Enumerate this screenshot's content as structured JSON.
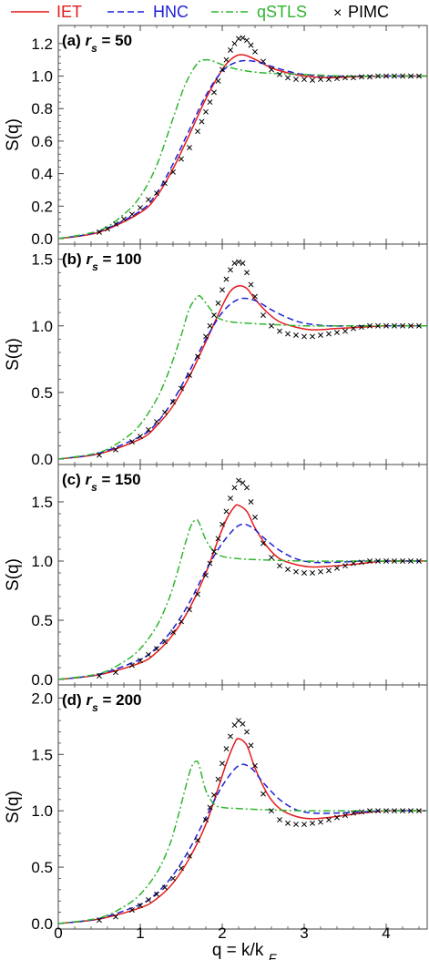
{
  "legend": [
    {
      "name": "IET",
      "color": "#e41a1c",
      "dash": "solid"
    },
    {
      "name": "HNC",
      "color": "#1f1fd6",
      "dash": "dashed"
    },
    {
      "name": "qSTLS",
      "color": "#2fb52f",
      "dash": "dashdot"
    },
    {
      "name": "PIMC",
      "color": "#000000",
      "marker": "×"
    }
  ],
  "chart_data": {
    "type": "line",
    "xlabel": "q = k/k_F",
    "ylabel": "S(q)",
    "xlim": [
      0,
      4.5
    ],
    "x_ticks": [
      "0",
      "1",
      "2",
      "3",
      "4"
    ],
    "panels": [
      {
        "label_prefix": "(a) ",
        "label_var": "r",
        "label_sub": "s",
        "label_suffix": " = 50",
        "ylim": [
          0,
          1.3
        ],
        "y_ticks": [
          0,
          0.2,
          0.4,
          0.6,
          0.8,
          1.0,
          1.2
        ],
        "y_tick_labels": [
          "0.0",
          "0.2",
          "0.4",
          "0.6",
          "0.8",
          "1.0",
          "1.2"
        ],
        "series": [
          {
            "name": "IET",
            "x": [
              0,
              0.5,
              1.0,
              1.2,
              1.4,
              1.6,
              1.8,
              2.0,
              2.1,
              2.2,
              2.3,
              2.45,
              2.6,
              2.8,
              3.0,
              3.3,
              3.6,
              4.0,
              4.5
            ],
            "y": [
              0,
              0.04,
              0.16,
              0.26,
              0.43,
              0.64,
              0.86,
              1.04,
              1.1,
              1.13,
              1.125,
              1.09,
              1.05,
              1.02,
              1.0,
              0.99,
              0.995,
              1.0,
              1.0
            ]
          },
          {
            "name": "HNC",
            "x": [
              0,
              0.5,
              1.0,
              1.2,
              1.4,
              1.6,
              1.8,
              2.0,
              2.2,
              2.4,
              2.6,
              2.8,
              3.0,
              3.3,
              3.6,
              4.0,
              4.5
            ],
            "y": [
              0,
              0.045,
              0.17,
              0.28,
              0.46,
              0.67,
              0.88,
              1.03,
              1.09,
              1.09,
              1.06,
              1.03,
              1.01,
              1.0,
              1.0,
              1.0,
              1.0
            ]
          },
          {
            "name": "qSTLS",
            "x": [
              0,
              0.5,
              0.8,
              1.0,
              1.2,
              1.4,
              1.55,
              1.7,
              1.8,
              1.9,
              2.0,
              2.2,
              2.5,
              3.0,
              3.5,
              4.0,
              4.5
            ],
            "y": [
              0,
              0.05,
              0.15,
              0.26,
              0.45,
              0.74,
              0.95,
              1.08,
              1.1,
              1.09,
              1.07,
              1.04,
              1.02,
              1.01,
              1.0,
              1.0,
              1.0
            ]
          },
          {
            "name": "PIMC",
            "x": [
              0.5,
              0.6,
              0.7,
              0.8,
              0.9,
              1.0,
              1.1,
              1.2,
              1.3,
              1.4,
              1.5,
              1.6,
              1.7,
              1.75,
              1.8,
              1.85,
              1.9,
              1.95,
              2.0,
              2.05,
              2.1,
              2.15,
              2.2,
              2.25,
              2.3,
              2.35,
              2.4,
              2.5,
              2.6,
              2.7,
              2.8,
              2.9,
              3.0,
              3.1,
              3.2,
              3.3,
              3.4,
              3.5,
              3.6,
              3.7,
              3.8,
              3.9,
              4.0,
              4.1,
              4.2,
              4.3,
              4.4
            ],
            "y": [
              0.04,
              0.06,
              0.09,
              0.12,
              0.15,
              0.19,
              0.24,
              0.28,
              0.34,
              0.41,
              0.49,
              0.56,
              0.66,
              0.72,
              0.78,
              0.84,
              0.9,
              0.97,
              1.04,
              1.1,
              1.16,
              1.2,
              1.23,
              1.235,
              1.22,
              1.19,
              1.15,
              1.09,
              1.04,
              1.01,
              0.99,
              0.98,
              0.98,
              0.975,
              0.98,
              0.98,
              0.985,
              0.99,
              0.99,
              0.995,
              0.995,
              1.0,
              1.0,
              1.0,
              1.0,
              1.0,
              1.0
            ]
          }
        ]
      },
      {
        "label_prefix": "(b) ",
        "label_var": "r",
        "label_sub": "s",
        "label_suffix": " = 100",
        "ylim": [
          0,
          1.6
        ],
        "y_ticks": [
          0,
          0.5,
          1.0,
          1.5
        ],
        "y_tick_labels": [
          "0.0",
          "0.5",
          "1.0",
          "1.5"
        ],
        "series": [
          {
            "name": "IET",
            "x": [
              0,
              0.5,
              1.0,
              1.2,
              1.4,
              1.6,
              1.8,
              2.0,
              2.1,
              2.2,
              2.3,
              2.4,
              2.55,
              2.7,
              2.9,
              3.1,
              3.4,
              3.7,
              4.0,
              4.5
            ],
            "y": [
              0,
              0.04,
              0.15,
              0.25,
              0.4,
              0.62,
              0.88,
              1.15,
              1.26,
              1.3,
              1.28,
              1.2,
              1.1,
              1.03,
              0.99,
              0.97,
              0.98,
              0.99,
              1.0,
              1.0
            ]
          },
          {
            "name": "HNC",
            "x": [
              0,
              0.5,
              1.0,
              1.2,
              1.4,
              1.6,
              1.8,
              2.0,
              2.2,
              2.4,
              2.6,
              2.8,
              3.0,
              3.3,
              3.6,
              4.0,
              4.5
            ],
            "y": [
              0,
              0.045,
              0.17,
              0.27,
              0.44,
              0.66,
              0.9,
              1.1,
              1.2,
              1.19,
              1.12,
              1.06,
              1.02,
              1.0,
              1.0,
              1.0,
              1.0
            ]
          },
          {
            "name": "qSTLS",
            "x": [
              0,
              0.5,
              0.8,
              1.0,
              1.2,
              1.35,
              1.5,
              1.6,
              1.7,
              1.75,
              1.85,
              1.95,
              2.1,
              2.3,
              2.6,
              3.0,
              3.5,
              4.0,
              4.5
            ],
            "y": [
              0,
              0.05,
              0.15,
              0.26,
              0.45,
              0.66,
              0.93,
              1.13,
              1.22,
              1.21,
              1.13,
              1.06,
              1.03,
              1.02,
              1.01,
              1.0,
              1.0,
              1.0,
              1.0
            ]
          },
          {
            "name": "PIMC",
            "x": [
              0.5,
              0.7,
              0.9,
              1.0,
              1.1,
              1.2,
              1.3,
              1.4,
              1.5,
              1.6,
              1.7,
              1.8,
              1.85,
              1.9,
              1.95,
              2.0,
              2.05,
              2.1,
              2.15,
              2.2,
              2.25,
              2.3,
              2.35,
              2.4,
              2.5,
              2.6,
              2.7,
              2.8,
              2.9,
              3.0,
              3.1,
              3.2,
              3.3,
              3.4,
              3.5,
              3.6,
              3.7,
              3.8,
              3.9,
              4.0,
              4.1,
              4.2,
              4.3,
              4.4
            ],
            "y": [
              0.03,
              0.07,
              0.13,
              0.17,
              0.22,
              0.28,
              0.35,
              0.43,
              0.53,
              0.63,
              0.77,
              0.92,
              1.0,
              1.08,
              1.17,
              1.27,
              1.35,
              1.42,
              1.47,
              1.48,
              1.47,
              1.4,
              1.31,
              1.22,
              1.08,
              1.0,
              0.96,
              0.94,
              0.93,
              0.92,
              0.92,
              0.93,
              0.94,
              0.95,
              0.96,
              0.98,
              0.99,
              1.0,
              1.0,
              1.0,
              1.0,
              1.0,
              1.0,
              1.0
            ]
          }
        ]
      },
      {
        "label_prefix": "(c) ",
        "label_var": "r",
        "label_sub": "s",
        "label_suffix": " = 150",
        "ylim": [
          0,
          1.8
        ],
        "y_ticks": [
          0,
          0.5,
          1.0,
          1.5
        ],
        "y_tick_labels": [
          "0.0",
          "0.5",
          "1.0",
          "1.5"
        ],
        "series": [
          {
            "name": "IET",
            "x": [
              0,
              0.5,
              1.0,
              1.2,
              1.4,
              1.6,
              1.8,
              1.95,
              2.05,
              2.15,
              2.2,
              2.3,
              2.4,
              2.55,
              2.7,
              2.9,
              3.1,
              3.4,
              3.7,
              4.0,
              4.5
            ],
            "y": [
              0,
              0.04,
              0.14,
              0.23,
              0.38,
              0.6,
              0.9,
              1.18,
              1.35,
              1.46,
              1.47,
              1.42,
              1.28,
              1.12,
              1.02,
              0.97,
              0.95,
              0.96,
              0.98,
              1.0,
              1.0
            ]
          },
          {
            "name": "HNC",
            "x": [
              0,
              0.5,
              1.0,
              1.2,
              1.4,
              1.6,
              1.8,
              2.0,
              2.2,
              2.35,
              2.5,
              2.7,
              2.9,
              3.1,
              3.4,
              3.7,
              4.0,
              4.5
            ],
            "y": [
              0,
              0.045,
              0.17,
              0.27,
              0.43,
              0.65,
              0.92,
              1.15,
              1.3,
              1.29,
              1.2,
              1.09,
              1.02,
              0.99,
              0.99,
              1.0,
              1.0,
              1.0
            ]
          },
          {
            "name": "qSTLS",
            "x": [
              0,
              0.5,
              0.8,
              1.0,
              1.2,
              1.35,
              1.45,
              1.55,
              1.62,
              1.68,
              1.72,
              1.8,
              1.9,
              2.0,
              2.2,
              2.5,
              3.0,
              3.5,
              4.0,
              4.5
            ],
            "y": [
              0,
              0.05,
              0.15,
              0.26,
              0.45,
              0.68,
              0.9,
              1.15,
              1.3,
              1.35,
              1.32,
              1.18,
              1.08,
              1.04,
              1.02,
              1.01,
              1.0,
              1.0,
              1.0,
              1.0
            ]
          },
          {
            "name": "PIMC",
            "x": [
              0.5,
              0.7,
              0.9,
              1.0,
              1.1,
              1.2,
              1.3,
              1.4,
              1.5,
              1.6,
              1.7,
              1.8,
              1.85,
              1.9,
              1.95,
              2.0,
              2.05,
              2.1,
              2.15,
              2.2,
              2.25,
              2.3,
              2.35,
              2.4,
              2.5,
              2.6,
              2.7,
              2.8,
              2.9,
              3.0,
              3.1,
              3.2,
              3.3,
              3.4,
              3.5,
              3.6,
              3.7,
              3.8,
              3.9,
              4.0,
              4.1,
              4.2,
              4.3,
              4.4
            ],
            "y": [
              0.03,
              0.06,
              0.12,
              0.16,
              0.21,
              0.26,
              0.32,
              0.4,
              0.49,
              0.59,
              0.72,
              0.88,
              0.98,
              1.08,
              1.19,
              1.31,
              1.42,
              1.53,
              1.62,
              1.68,
              1.66,
              1.62,
              1.5,
              1.37,
              1.15,
              1.03,
              0.96,
              0.93,
              0.91,
              0.9,
              0.9,
              0.91,
              0.92,
              0.94,
              0.96,
              0.98,
              0.99,
              1.0,
              1.0,
              1.0,
              1.0,
              1.0,
              1.0,
              1.0
            ]
          }
        ]
      },
      {
        "label_prefix": "(d) ",
        "label_var": "r",
        "label_sub": "s",
        "label_suffix": " = 200",
        "ylim": [
          0,
          2.1
        ],
        "y_ticks": [
          0,
          0.5,
          1.0,
          1.5,
          2.0
        ],
        "y_tick_labels": [
          "0.0",
          "0.5",
          "1.0",
          "1.5",
          "2.0"
        ],
        "series": [
          {
            "name": "IET",
            "x": [
              0,
              0.5,
              1.0,
              1.2,
              1.4,
              1.6,
              1.8,
              1.95,
              2.05,
              2.15,
              2.2,
              2.3,
              2.4,
              2.55,
              2.7,
              2.9,
              3.1,
              3.4,
              3.7,
              4.0,
              4.5
            ],
            "y": [
              0,
              0.04,
              0.14,
              0.22,
              0.36,
              0.58,
              0.88,
              1.2,
              1.42,
              1.6,
              1.64,
              1.58,
              1.38,
              1.15,
              1.02,
              0.95,
              0.93,
              0.95,
              0.98,
              1.0,
              1.0
            ]
          },
          {
            "name": "HNC",
            "x": [
              0,
              0.5,
              1.0,
              1.2,
              1.4,
              1.6,
              1.8,
              2.0,
              2.2,
              2.35,
              2.5,
              2.7,
              2.9,
              3.1,
              3.4,
              3.7,
              4.0,
              4.5
            ],
            "y": [
              0,
              0.045,
              0.17,
              0.27,
              0.43,
              0.66,
              0.94,
              1.22,
              1.4,
              1.38,
              1.25,
              1.1,
              1.01,
              0.98,
              0.98,
              0.99,
              1.0,
              1.0
            ]
          },
          {
            "name": "qSTLS",
            "x": [
              0,
              0.5,
              0.8,
              1.0,
              1.2,
              1.35,
              1.45,
              1.55,
              1.62,
              1.68,
              1.72,
              1.8,
              1.9,
              2.0,
              2.2,
              2.5,
              3.0,
              3.5,
              4.0,
              4.5
            ],
            "y": [
              0,
              0.05,
              0.15,
              0.26,
              0.45,
              0.68,
              0.92,
              1.2,
              1.38,
              1.44,
              1.4,
              1.18,
              1.06,
              1.03,
              1.02,
              1.01,
              1.0,
              1.0,
              1.0,
              1.0
            ]
          },
          {
            "name": "PIMC",
            "x": [
              0.5,
              0.7,
              0.9,
              1.0,
              1.1,
              1.2,
              1.3,
              1.4,
              1.5,
              1.6,
              1.7,
              1.8,
              1.85,
              1.9,
              1.95,
              2.0,
              2.05,
              2.1,
              2.15,
              2.2,
              2.25,
              2.3,
              2.35,
              2.4,
              2.5,
              2.6,
              2.7,
              2.8,
              2.9,
              3.0,
              3.1,
              3.2,
              3.3,
              3.4,
              3.5,
              3.6,
              3.7,
              3.8,
              3.9,
              4.0,
              4.1,
              4.2,
              4.3,
              4.4
            ],
            "y": [
              0.03,
              0.06,
              0.12,
              0.16,
              0.21,
              0.26,
              0.32,
              0.4,
              0.49,
              0.6,
              0.74,
              0.92,
              1.03,
              1.14,
              1.28,
              1.42,
              1.55,
              1.66,
              1.76,
              1.8,
              1.77,
              1.7,
              1.58,
              1.4,
              1.15,
              1.0,
              0.92,
              0.89,
              0.88,
              0.88,
              0.89,
              0.9,
              0.92,
              0.94,
              0.96,
              0.98,
              0.99,
              1.0,
              1.0,
              1.0,
              1.0,
              1.0,
              1.0,
              1.0
            ]
          }
        ]
      }
    ]
  }
}
